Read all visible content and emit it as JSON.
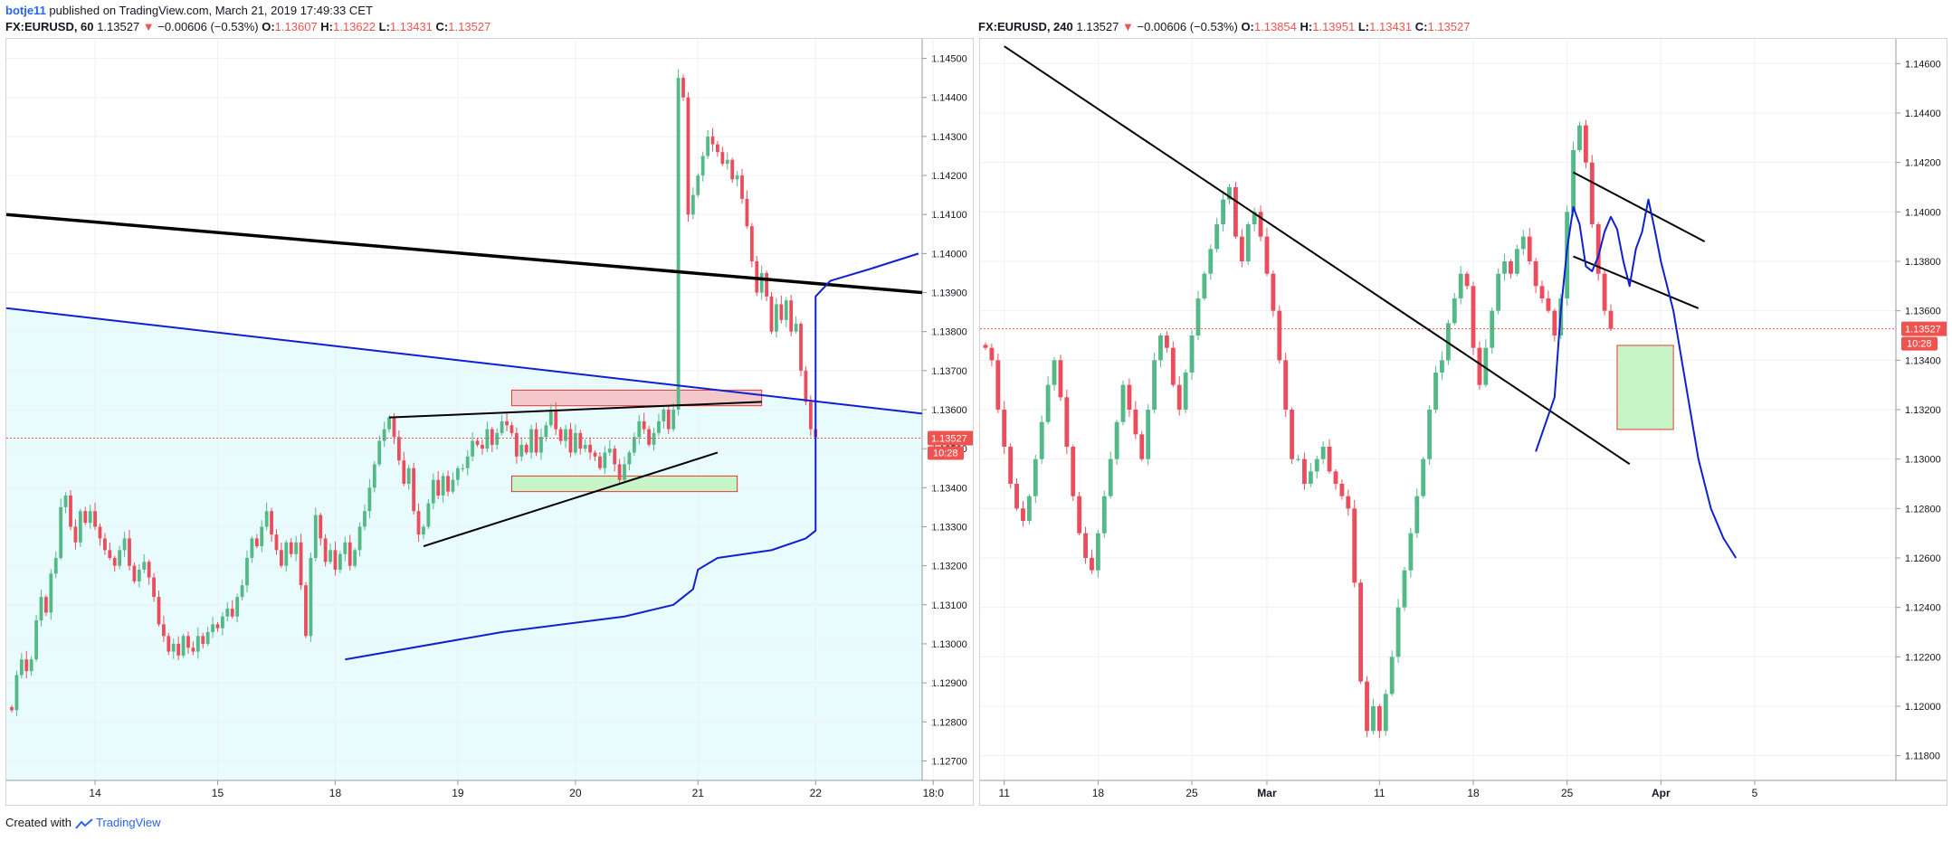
{
  "header": {
    "user": "botje11",
    "published_text": "published on TradingView.com, March 21, 2019 17:49:33 CET"
  },
  "footer": {
    "created_with": "Created with",
    "brand": "TradingView"
  },
  "colors": {
    "up": "#53b987",
    "down": "#eb4d5c",
    "blue_line": "#1020d0",
    "shade": "#e8fbfd",
    "price_label": "#ef5350"
  },
  "chart_data": [
    {
      "type": "candlestick",
      "symbol": "FX:EURUSD, 60",
      "last": "1.13527",
      "change": "−0.00606 (−0.53%)",
      "ohlc": {
        "O_label": "O:",
        "O": "1.13607",
        "H_label": "H:",
        "H": "1.13622",
        "L_label": "L:",
        "L": "1.13431",
        "C_label": "C:",
        "C": "1.13527"
      },
      "price_label": "1.13527",
      "countdown": "10:28",
      "ylim": [
        1.1265,
        1.1455
      ],
      "y_ticks": [
        "1.14500",
        "1.14400",
        "1.14300",
        "1.14200",
        "1.14100",
        "1.14000",
        "1.13900",
        "1.13800",
        "1.13700",
        "1.13600",
        "1.13500",
        "1.13400",
        "1.13300",
        "1.13200",
        "1.13100",
        "1.13000",
        "1.12900",
        "1.12800",
        "1.12700"
      ],
      "x_ticks": [
        "14",
        "15",
        "18",
        "19",
        "20",
        "21",
        "22",
        "18:0"
      ],
      "x_index_range": [
        0,
        185
      ],
      "x_tick_index": [
        17,
        42,
        66,
        91,
        115,
        140,
        164,
        188
      ],
      "closes": [
        1.1283,
        1.1292,
        1.1296,
        1.1293,
        1.1296,
        1.1306,
        1.1312,
        1.1308,
        1.1318,
        1.1322,
        1.1335,
        1.1338,
        1.133,
        1.1326,
        1.1334,
        1.1331,
        1.1334,
        1.133,
        1.1327,
        1.1324,
        1.1322,
        1.132,
        1.1324,
        1.1327,
        1.132,
        1.1316,
        1.1319,
        1.1321,
        1.1317,
        1.1312,
        1.1305,
        1.1302,
        1.1298,
        1.13,
        1.1297,
        1.1302,
        1.1299,
        1.1298,
        1.1302,
        1.13,
        1.1303,
        1.1305,
        1.1304,
        1.1307,
        1.1309,
        1.1307,
        1.1312,
        1.1315,
        1.1322,
        1.1327,
        1.1325,
        1.133,
        1.1334,
        1.1328,
        1.1324,
        1.132,
        1.1326,
        1.1323,
        1.1326,
        1.1315,
        1.1302,
        1.1322,
        1.1333,
        1.1327,
        1.1321,
        1.1324,
        1.1319,
        1.1323,
        1.1326,
        1.132,
        1.1324,
        1.133,
        1.1334,
        1.134,
        1.1346,
        1.1352,
        1.1355,
        1.1358,
        1.1353,
        1.1347,
        1.1341,
        1.1345,
        1.1334,
        1.1328,
        1.133,
        1.1336,
        1.1342,
        1.1338,
        1.1343,
        1.1339,
        1.1342,
        1.1345,
        1.1345,
        1.1348,
        1.1352,
        1.1351,
        1.135,
        1.1355,
        1.1351,
        1.1354,
        1.1357,
        1.1356,
        1.1354,
        1.1348,
        1.1351,
        1.1349,
        1.1355,
        1.1349,
        1.1353,
        1.1356,
        1.136,
        1.1355,
        1.1352,
        1.1355,
        1.1349,
        1.1354,
        1.135,
        1.1351,
        1.1349,
        1.1348,
        1.1345,
        1.1349,
        1.135,
        1.1346,
        1.1342,
        1.1346,
        1.1349,
        1.1353,
        1.1357,
        1.1355,
        1.1351,
        1.1354,
        1.1357,
        1.136,
        1.1355,
        1.136,
        1.1445,
        1.144,
        1.141,
        1.1415,
        1.142,
        1.1425,
        1.143,
        1.1428,
        1.1426,
        1.1423,
        1.1424,
        1.1419,
        1.142,
        1.1414,
        1.1407,
        1.1398,
        1.139,
        1.1395,
        1.1389,
        1.138,
        1.1387,
        1.1383,
        1.1388,
        1.138,
        1.1382,
        1.137,
        1.1362,
        1.1355,
        1.1353
      ],
      "annotations": {
        "red_zone": [
          1.1365,
          1.1361
        ],
        "green_zone": [
          1.1343,
          1.1339
        ],
        "current_price": 1.13527
      }
    },
    {
      "type": "candlestick",
      "symbol": "FX:EURUSD, 240",
      "last": "1.13527",
      "change": "−0.00606 (−0.53%)",
      "ohlc": {
        "O_label": "O:",
        "O": "1.13854",
        "H_label": "H:",
        "H": "1.13951",
        "L_label": "L:",
        "L": "1.13431",
        "C_label": "C:",
        "C": "1.13527"
      },
      "price_label": "1.13527",
      "countdown": "10:28",
      "ylim": [
        1.117,
        1.147
      ],
      "y_ticks": [
        "1.14600",
        "1.14400",
        "1.14200",
        "1.14000",
        "1.13800",
        "1.13600",
        "1.13400",
        "1.13200",
        "1.13000",
        "1.12800",
        "1.12600",
        "1.12400",
        "1.12200",
        "1.12000",
        "1.11800"
      ],
      "x_ticks": [
        "11",
        "18",
        "25",
        "Mar",
        "11",
        "18",
        "25",
        "Apr",
        "5"
      ],
      "x_index_range": [
        0,
        145
      ],
      "x_tick_index": [
        3,
        18,
        33,
        45,
        63,
        78,
        93,
        108,
        123
      ],
      "closes": [
        1.1345,
        1.134,
        1.132,
        1.1305,
        1.129,
        1.128,
        1.1275,
        1.1285,
        1.13,
        1.1315,
        1.133,
        1.134,
        1.1325,
        1.1305,
        1.1285,
        1.127,
        1.126,
        1.1255,
        1.127,
        1.1285,
        1.13,
        1.1315,
        1.133,
        1.132,
        1.131,
        1.13,
        1.132,
        1.134,
        1.135,
        1.1345,
        1.133,
        1.132,
        1.1335,
        1.135,
        1.1365,
        1.1375,
        1.1385,
        1.1395,
        1.1405,
        1.141,
        1.139,
        1.138,
        1.1395,
        1.14,
        1.139,
        1.1375,
        1.136,
        1.134,
        1.132,
        1.13,
        1.13,
        1.129,
        1.1295,
        1.13,
        1.1305,
        1.1295,
        1.129,
        1.1285,
        1.128,
        1.125,
        1.121,
        1.119,
        1.12,
        1.119,
        1.1205,
        1.122,
        1.124,
        1.1255,
        1.127,
        1.1285,
        1.13,
        1.132,
        1.1335,
        1.134,
        1.1355,
        1.1365,
        1.1375,
        1.137,
        1.1345,
        1.133,
        1.1345,
        1.136,
        1.1375,
        1.138,
        1.1375,
        1.1385,
        1.139,
        1.138,
        1.137,
        1.1365,
        1.136,
        1.135,
        1.1365,
        1.14,
        1.1425,
        1.1435,
        1.142,
        1.1395,
        1.1375,
        1.136,
        1.13527
      ],
      "annotations": {
        "green_zone": [
          1.1346,
          1.1312
        ],
        "current_price": 1.13527
      }
    }
  ]
}
